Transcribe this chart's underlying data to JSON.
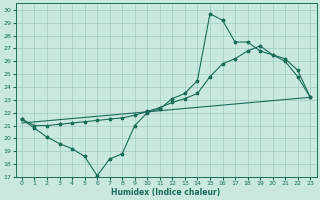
{
  "title": "",
  "xlabel": "Humidex (Indice chaleur)",
  "xlim": [
    -0.5,
    23.5
  ],
  "ylim": [
    17,
    30.5
  ],
  "yticks": [
    17,
    18,
    19,
    20,
    21,
    22,
    23,
    24,
    25,
    26,
    27,
    28,
    29,
    30
  ],
  "xticks": [
    0,
    1,
    2,
    3,
    4,
    5,
    6,
    7,
    8,
    9,
    10,
    11,
    12,
    13,
    14,
    15,
    16,
    17,
    18,
    19,
    20,
    21,
    22,
    23
  ],
  "bg_color": "#c8e8e0",
  "grid_color": "#a0ccc4",
  "line_color": "#1a6b5a",
  "line1_x": [
    0,
    1,
    2,
    3,
    4,
    5,
    6,
    7,
    8,
    9,
    10,
    11,
    12,
    13,
    14,
    15,
    16,
    17,
    18,
    19,
    20,
    21,
    22,
    23
  ],
  "line1_y": [
    21.5,
    20.8,
    20.1,
    19.6,
    19.2,
    18.6,
    17.1,
    18.4,
    18.8,
    21.0,
    22.0,
    22.3,
    23.1,
    23.5,
    24.5,
    29.7,
    29.2,
    27.5,
    27.5,
    26.8,
    26.5,
    26.0,
    24.8,
    23.2
  ],
  "line2_x": [
    0,
    1,
    2,
    3,
    4,
    5,
    6,
    7,
    8,
    9,
    10,
    11,
    12,
    13,
    14,
    15,
    16,
    17,
    18,
    19,
    20,
    21,
    22,
    23
  ],
  "line2_y": [
    21.5,
    21.0,
    21.0,
    21.1,
    21.2,
    21.3,
    21.4,
    21.5,
    21.6,
    21.8,
    22.1,
    22.4,
    22.8,
    23.1,
    23.5,
    24.8,
    25.8,
    26.2,
    26.8,
    27.2,
    26.5,
    26.2,
    25.3,
    23.2
  ],
  "line3_x": [
    0,
    23
  ],
  "line3_y": [
    21.2,
    23.2
  ]
}
